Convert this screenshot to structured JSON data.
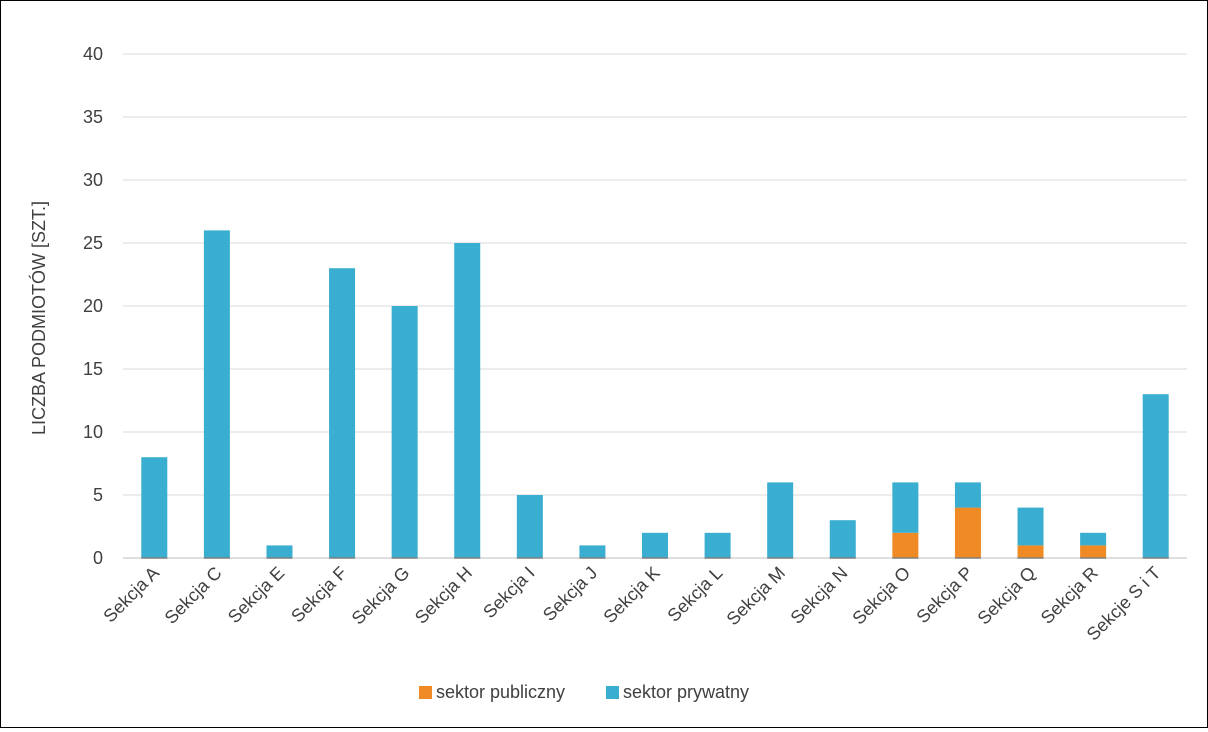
{
  "chart_data": {
    "type": "bar",
    "stacked": true,
    "categories": [
      "Sekcja A",
      "Sekcja C",
      "Sekcja E",
      "Sekcja F",
      "Sekcja G",
      "Sekcja H",
      "Sekcja I",
      "Sekcja J",
      "Sekcja K",
      "Sekcja L",
      "Sekcja M",
      "Sekcja N",
      "Sekcja O",
      "Sekcja P",
      "Sekcja Q",
      "Sekcja R",
      "Sekcje S i T"
    ],
    "series": [
      {
        "name": "sektor publiczny",
        "color": "#f08a24",
        "values": [
          0,
          0,
          0,
          0,
          0,
          0,
          0,
          0,
          0,
          0,
          0,
          0,
          2,
          4,
          1,
          1,
          0
        ]
      },
      {
        "name": "sektor prywatny",
        "color": "#3aaed0",
        "values": [
          8,
          26,
          1,
          23,
          20,
          25,
          5,
          1,
          2,
          2,
          6,
          3,
          4,
          2,
          3,
          1,
          13
        ]
      }
    ],
    "title": "",
    "xlabel": "",
    "ylabel": "LICZBA PODMIOTÓW [SZT.]",
    "ylim": [
      0,
      40
    ],
    "yticks": [
      0,
      5,
      10,
      15,
      20,
      25,
      30,
      35,
      40
    ],
    "grid": true,
    "legend_position": "bottom"
  }
}
